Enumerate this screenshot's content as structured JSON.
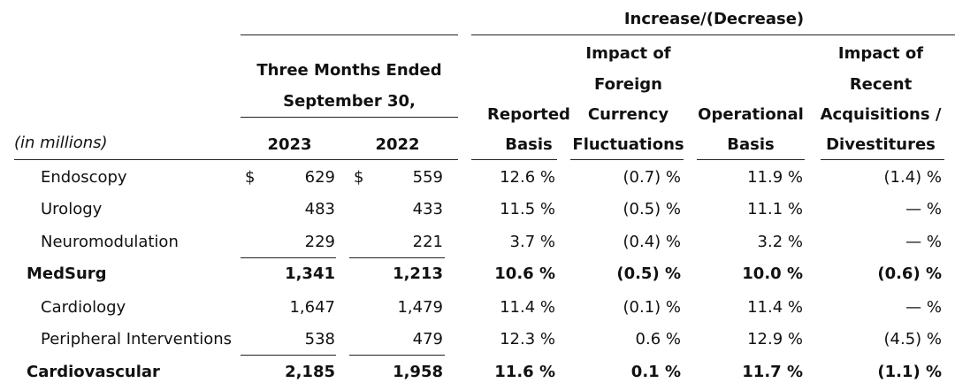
{
  "header": {
    "unit_label": "(in millions)",
    "period_title_line1": "Three Months Ended",
    "period_title_line2": "September 30,",
    "year_current": "2023",
    "year_prior": "2022",
    "increase_label": "Increase/(Decrease)",
    "reported": [
      "Reported",
      "Basis"
    ],
    "fx": [
      "Impact of",
      "Foreign",
      "Currency",
      "Fluctuations"
    ],
    "operational": [
      "Operational",
      "Basis"
    ],
    "acq": [
      "Impact of",
      "Recent",
      "Acquisitions /",
      "Divestitures"
    ]
  },
  "currency_symbol": "$",
  "rows": [
    {
      "label": "Endoscopy",
      "y2023": "629",
      "y2022": "559",
      "reported": "12.6 %",
      "fx": "(0.7) %",
      "operational": "11.9 %",
      "acq": "(1.4) %"
    },
    {
      "label": "Urology",
      "y2023": "483",
      "y2022": "433",
      "reported": "11.5 %",
      "fx": "(0.5) %",
      "operational": "11.1 %",
      "acq": "— %"
    },
    {
      "label": "Neuromodulation",
      "y2023": "229",
      "y2022": "221",
      "reported": "3.7 %",
      "fx": "(0.4) %",
      "operational": "3.2 %",
      "acq": "— %"
    },
    {
      "label": "MedSurg",
      "y2023": "1,341",
      "y2022": "1,213",
      "reported": "10.6 %",
      "fx": "(0.5) %",
      "operational": "10.0 %",
      "acq": "(0.6) %"
    },
    {
      "label": "Cardiology",
      "y2023": "1,647",
      "y2022": "1,479",
      "reported": "11.4 %",
      "fx": "(0.1) %",
      "operational": "11.4 %",
      "acq": "— %"
    },
    {
      "label": "Peripheral Interventions",
      "y2023": "538",
      "y2022": "479",
      "reported": "12.3 %",
      "fx": "0.6 %",
      "operational": "12.9 %",
      "acq": "(4.5) %"
    },
    {
      "label": "Cardiovascular",
      "y2023": "2,185",
      "y2022": "1,958",
      "reported": "11.6 %",
      "fx": "0.1 %",
      "operational": "11.7 %",
      "acq": "(1.1) %"
    }
  ]
}
